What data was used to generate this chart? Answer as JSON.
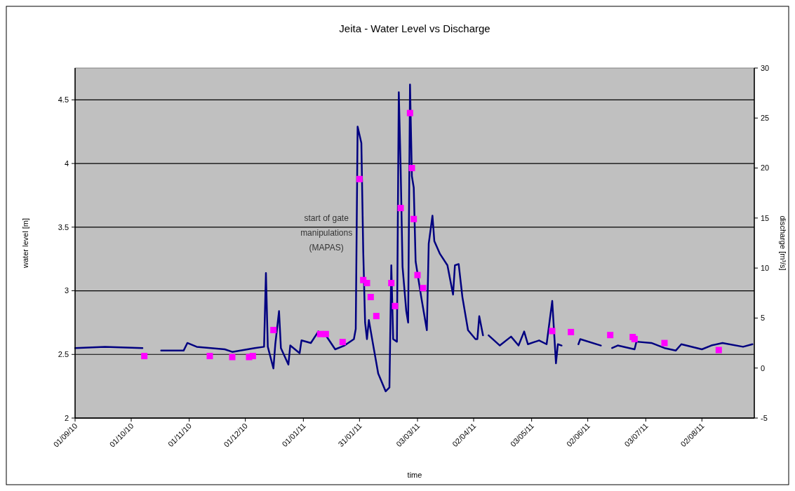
{
  "chart_data": {
    "type": "line",
    "title": "Jeita  -  Water Level vs Discharge",
    "xlabel": "time",
    "ylabel": "water level [m]",
    "y2label": "discharge [m³/s]",
    "xlim": [
      "2010-09-01",
      "2011-08-30"
    ],
    "xticks": [
      {
        "value": "2010-09-01",
        "label": "01/09/10"
      },
      {
        "value": "2010-10-01",
        "label": "01/10/10"
      },
      {
        "value": "2010-11-01",
        "label": "01/11/10"
      },
      {
        "value": "2010-12-01",
        "label": "01/12/10"
      },
      {
        "value": "2011-01-01",
        "label": "01/01/11"
      },
      {
        "value": "2011-01-31",
        "label": "31/01/11"
      },
      {
        "value": "2011-03-03",
        "label": "03/03/11"
      },
      {
        "value": "2011-04-02",
        "label": "02/04/11"
      },
      {
        "value": "2011-05-03",
        "label": "03/05/11"
      },
      {
        "value": "2011-06-02",
        "label": "02/06/11"
      },
      {
        "value": "2011-07-03",
        "label": "03/07/11"
      },
      {
        "value": "2011-08-02",
        "label": "02/08/11"
      }
    ],
    "ylim": [
      2,
      4.75
    ],
    "yticks": [
      2,
      2.5,
      3,
      3.5,
      4,
      4.5
    ],
    "y2lim": [
      -5,
      30
    ],
    "y2ticks": [
      -5,
      0,
      5,
      10,
      15,
      20,
      25,
      30
    ],
    "grid": "y",
    "annotations": [
      "start of gate manipulations (MAPAS)"
    ],
    "series": [
      {
        "color": "#000080",
        "marker": "none",
        "line_style": "solid",
        "x": [
          "2010-09-01",
          "2010-09-17",
          "2010-10-07",
          "2010-10-14",
          "2010-10-17",
          "2010-10-29",
          "2010-10-31",
          "2010-11-05",
          "2010-11-20",
          "2010-11-24",
          "2010-12-06",
          "2010-12-11",
          "2010-12-12",
          "2010-12-13",
          "2010-12-16",
          "2010-12-17",
          "2010-12-19",
          "2010-12-20",
          "2010-12-24",
          "2010-12-25",
          "2010-12-30",
          "2010-12-31",
          "2011-01-05",
          "2011-01-09",
          "2011-01-13",
          "2011-01-18",
          "2011-01-23",
          "2011-01-28",
          "2011-01-29",
          "2011-01-30",
          "2011-02-01",
          "2011-02-02",
          "2011-02-03",
          "2011-02-04",
          "2011-02-05",
          "2011-02-07",
          "2011-02-10",
          "2011-02-14",
          "2011-02-16",
          "2011-02-17",
          "2011-02-18",
          "2011-02-20",
          "2011-02-21",
          "2011-02-22",
          "2011-02-23",
          "2011-02-25",
          "2011-02-26",
          "2011-02-27",
          "2011-02-28",
          "2011-03-01",
          "2011-03-02",
          "2011-03-05",
          "2011-03-08",
          "2011-03-09",
          "2011-03-11",
          "2011-03-12",
          "2011-03-15",
          "2011-03-19",
          "2011-03-22",
          "2011-03-23",
          "2011-03-25",
          "2011-03-27",
          "2011-03-30",
          "2011-04-03",
          "2011-04-04",
          "2011-04-05",
          "2011-04-07",
          "2011-04-09",
          "2011-04-10",
          "2011-04-16",
          "2011-04-22",
          "2011-04-26",
          "2011-04-29",
          "2011-05-01",
          "2011-05-07",
          "2011-05-11",
          "2011-05-14",
          "2011-05-16",
          "2011-05-17",
          "2011-05-19",
          "2011-05-25",
          "2011-05-28",
          "2011-05-29",
          "2011-06-09",
          "2011-06-12",
          "2011-06-15",
          "2011-06-18",
          "2011-06-27",
          "2011-06-28",
          "2011-07-06",
          "2011-07-13",
          "2011-07-19",
          "2011-07-22",
          "2011-08-02",
          "2011-08-07",
          "2011-08-13",
          "2011-08-24",
          "2011-08-29"
        ],
        "values": [
          2.55,
          2.56,
          2.55,
          null,
          2.53,
          2.53,
          2.59,
          2.56,
          2.54,
          2.52,
          2.55,
          2.56,
          3.14,
          2.56,
          2.39,
          2.58,
          2.84,
          2.55,
          2.42,
          2.57,
          2.51,
          2.61,
          2.59,
          2.68,
          2.65,
          2.54,
          2.57,
          2.62,
          2.7,
          4.29,
          4.16,
          3.31,
          2.75,
          2.62,
          2.77,
          2.6,
          2.35,
          2.21,
          2.24,
          3.2,
          2.62,
          2.6,
          4.56,
          3.96,
          3.19,
          2.84,
          2.75,
          4.62,
          3.9,
          3.81,
          3.23,
          2.95,
          2.69,
          3.37,
          3.59,
          3.39,
          3.29,
          3.2,
          2.97,
          3.2,
          3.21,
          2.95,
          2.69,
          2.62,
          2.62,
          2.8,
          2.65,
          null,
          2.65,
          2.57,
          2.64,
          2.57,
          2.68,
          2.58,
          2.61,
          2.58,
          2.92,
          2.43,
          2.58,
          2.57,
          null,
          2.58,
          2.62,
          2.57,
          null,
          2.55,
          2.57,
          2.54,
          2.6,
          2.59,
          2.55,
          2.53,
          2.58,
          2.54,
          2.57,
          2.59,
          2.56,
          2.58
        ]
      },
      {
        "type": "scatter",
        "axis": "y2",
        "color": "#ff00ff",
        "marker": "square",
        "x": [
          "2010-10-08",
          "2010-11-12",
          "2010-11-24",
          "2010-12-03",
          "2010-12-05",
          "2010-12-16",
          "2011-01-10",
          "2011-01-13",
          "2011-01-22",
          "2011-01-31",
          "2011-02-02",
          "2011-02-04",
          "2011-02-06",
          "2011-02-09",
          "2011-02-17",
          "2011-02-19",
          "2011-02-22",
          "2011-02-27",
          "2011-02-28",
          "2011-03-01",
          "2011-03-03",
          "2011-03-06",
          "2011-05-14",
          "2011-05-24",
          "2011-06-14",
          "2011-06-26",
          "2011-06-27",
          "2011-07-13",
          "2011-08-11"
        ],
        "values": [
          1.2,
          1.2,
          1.1,
          1.1,
          1.2,
          3.8,
          3.4,
          3.4,
          2.6,
          18.9,
          8.8,
          8.5,
          7.1,
          5.2,
          8.5,
          6.2,
          16,
          25.5,
          20,
          14.9,
          9.3,
          8,
          3.7,
          3.6,
          3.3,
          3.1,
          2.9,
          2.5,
          1.8
        ]
      }
    ]
  }
}
